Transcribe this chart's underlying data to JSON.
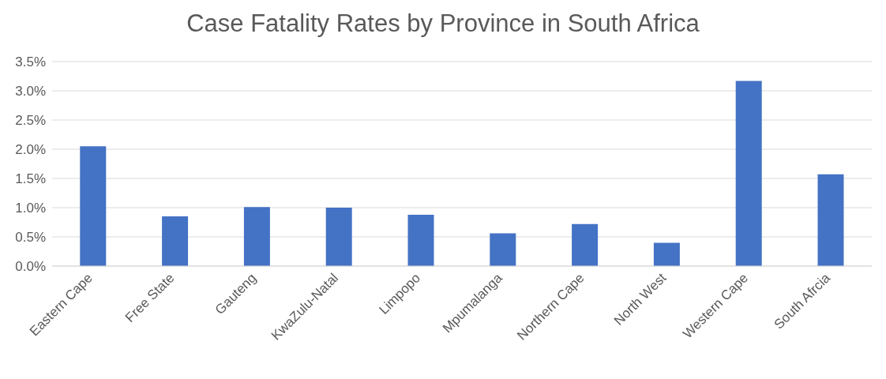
{
  "chart_data": {
    "type": "bar",
    "title": "Case Fatality Rates by Province in South Africa",
    "categories": [
      "Eastern Cape",
      "Free State",
      "Gauteng",
      "KwaZulu-Natal",
      "Limpopo",
      "Mpumalanga",
      "Northern Cape",
      "North West",
      "Western Cape",
      "South Afrcia"
    ],
    "values": [
      2.05,
      0.85,
      1.01,
      1.0,
      0.88,
      0.56,
      0.72,
      0.4,
      3.17,
      1.57
    ],
    "color": "#4472c4",
    "ylim": [
      0,
      3.5
    ],
    "yticks": [
      {
        "value": 0,
        "label": "0.0%"
      },
      {
        "value": 0.5,
        "label": "0.5%"
      },
      {
        "value": 1,
        "label": "1.0%"
      },
      {
        "value": 1.5,
        "label": "1.5%"
      },
      {
        "value": 2,
        "label": "2.0%"
      },
      {
        "value": 2.5,
        "label": "2.5%"
      },
      {
        "value": 3,
        "label": "3.0%"
      },
      {
        "value": 3.5,
        "label": "3.5%"
      }
    ],
    "grid": "y"
  }
}
